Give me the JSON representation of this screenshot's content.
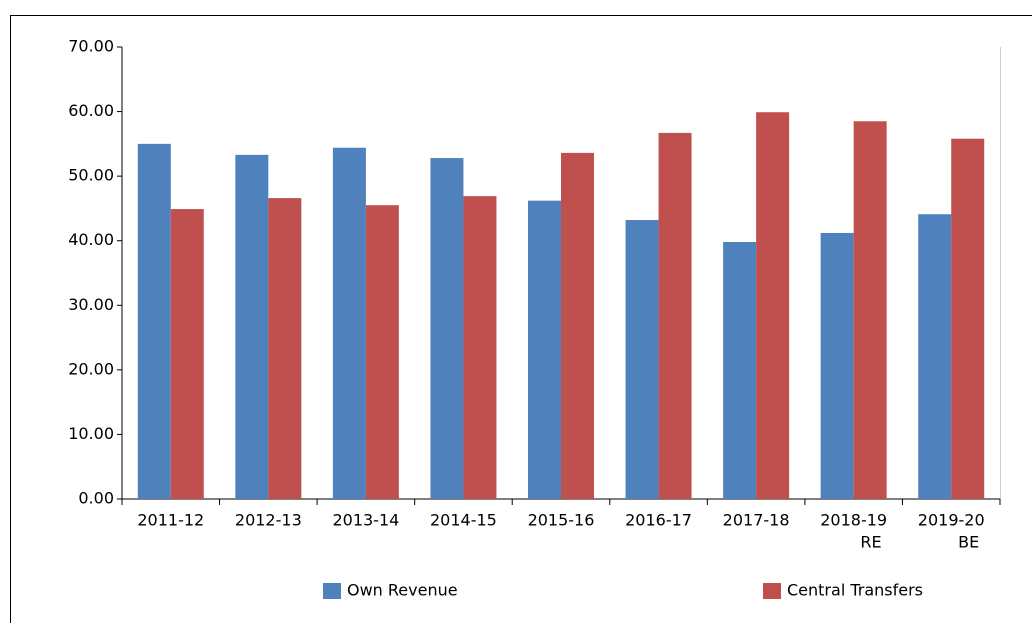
{
  "chart_data": {
    "type": "bar",
    "categories": [
      "2011-12",
      "2012-13",
      "2013-14",
      "2014-15",
      "2015-16",
      "2016-17",
      "2017-18",
      [
        "2018-19",
        "RE"
      ],
      [
        "2019-20",
        "BE"
      ]
    ],
    "series": [
      {
        "name": "Own Revenue",
        "color": "#4f81bd",
        "values": [
          55.0,
          53.3,
          54.4,
          52.8,
          46.2,
          43.2,
          39.8,
          41.2,
          44.1
        ]
      },
      {
        "name": "Central Transfers",
        "color": "#c0504d",
        "values": [
          44.9,
          46.6,
          45.5,
          46.9,
          53.6,
          56.7,
          59.9,
          58.5,
          55.8
        ]
      }
    ],
    "ylim": [
      0,
      70
    ],
    "yticks": [
      {
        "value": 0,
        "label": "0.00"
      },
      {
        "value": 10,
        "label": "10.00"
      },
      {
        "value": 20,
        "label": "20.00"
      },
      {
        "value": 30,
        "label": "30.00"
      },
      {
        "value": 40,
        "label": "40.00"
      },
      {
        "value": 50,
        "label": "50.00"
      },
      {
        "value": 60,
        "label": "60.00"
      },
      {
        "value": 70,
        "label": "70.00"
      }
    ],
    "grid": false
  }
}
